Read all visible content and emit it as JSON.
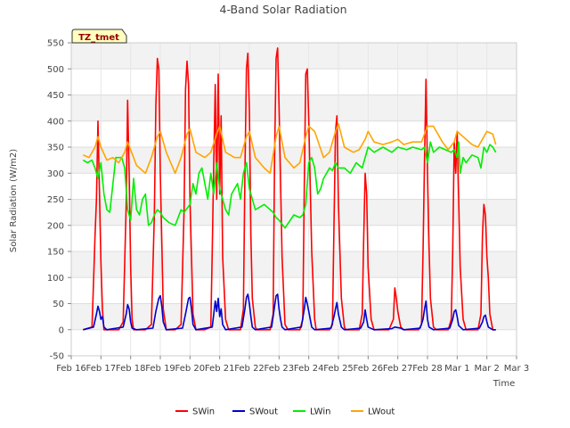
{
  "chart_data": {
    "type": "line",
    "title": "4-Band Solar Radiation",
    "xlabel": "Time",
    "ylabel": "Solar Radiation (W/m2)",
    "badge": "TZ_tmet",
    "ylim": [
      -50,
      550
    ],
    "yticks": [
      -50,
      0,
      50,
      100,
      150,
      200,
      250,
      300,
      350,
      400,
      450,
      500,
      550
    ],
    "xlim": [
      0,
      15
    ],
    "xticks": [
      {
        "pos": 0,
        "label": "Feb 16"
      },
      {
        "pos": 1,
        "label": "Feb 17"
      },
      {
        "pos": 2,
        "label": "Feb 18"
      },
      {
        "pos": 3,
        "label": "Feb 19"
      },
      {
        "pos": 4,
        "label": "Feb 20"
      },
      {
        "pos": 5,
        "label": "Feb 21"
      },
      {
        "pos": 6,
        "label": "Feb 22"
      },
      {
        "pos": 7,
        "label": "Feb 23"
      },
      {
        "pos": 8,
        "label": "Feb 24"
      },
      {
        "pos": 9,
        "label": "Feb 25"
      },
      {
        "pos": 10,
        "label": "Feb 26"
      },
      {
        "pos": 11,
        "label": "Feb 27"
      },
      {
        "pos": 12,
        "label": "Feb 28"
      },
      {
        "pos": 13,
        "label": "Mar 1"
      },
      {
        "pos": 14,
        "label": "Mar 2"
      },
      {
        "pos": 15,
        "label": "Mar 3"
      }
    ],
    "grid": true,
    "legend_position": "bottom-center",
    "series": [
      {
        "name": "SWin",
        "color": "#ff0000",
        "x": [
          0.4,
          0.7,
          0.75,
          0.8,
          0.85,
          0.9,
          0.95,
          1.0,
          1.05,
          1.1,
          1.2,
          1.6,
          1.75,
          1.85,
          1.9,
          1.95,
          2.0,
          2.05,
          2.1,
          2.2,
          2.5,
          2.7,
          2.8,
          2.85,
          2.9,
          2.95,
          3.0,
          3.1,
          3.2,
          3.25,
          3.5,
          3.7,
          3.8,
          3.85,
          3.9,
          3.95,
          4.0,
          4.1,
          4.2,
          4.5,
          4.7,
          4.75,
          4.8,
          4.85,
          4.9,
          4.95,
          5.0,
          5.05,
          5.1,
          5.2,
          5.3,
          5.7,
          5.8,
          5.85,
          5.9,
          5.95,
          6.0,
          6.05,
          6.1,
          6.2,
          6.25,
          6.7,
          6.8,
          6.85,
          6.9,
          6.95,
          7.0,
          7.1,
          7.2,
          7.3,
          7.7,
          7.8,
          7.85,
          7.9,
          7.95,
          8.0,
          8.1,
          8.2,
          8.25,
          8.7,
          8.8,
          8.85,
          8.9,
          8.95,
          9.0,
          9.1,
          9.2,
          9.25,
          9.7,
          9.8,
          9.85,
          9.9,
          9.95,
          10.0,
          10.1,
          10.2,
          10.7,
          10.85,
          10.9,
          10.95,
          11.0,
          11.05,
          11.1,
          11.2,
          11.7,
          11.8,
          11.85,
          11.9,
          11.95,
          12.0,
          12.05,
          12.1,
          12.2,
          12.3,
          12.7,
          12.8,
          12.85,
          12.9,
          12.95,
          13.0,
          13.05,
          13.1,
          13.2,
          13.3,
          13.7,
          13.8,
          13.85,
          13.9,
          13.95,
          14.0,
          14.05,
          14.1,
          14.2,
          14.3
        ],
        "y": [
          0,
          5,
          90,
          180,
          250,
          400,
          260,
          130,
          40,
          0,
          0,
          0,
          15,
          240,
          440,
          300,
          120,
          20,
          0,
          0,
          0,
          10,
          220,
          430,
          520,
          500,
          300,
          40,
          0,
          0,
          0,
          10,
          230,
          460,
          515,
          470,
          250,
          30,
          0,
          0,
          5,
          150,
          320,
          470,
          250,
          490,
          260,
          410,
          140,
          20,
          0,
          0,
          40,
          300,
          500,
          530,
          420,
          180,
          60,
          5,
          0,
          0,
          30,
          330,
          520,
          540,
          430,
          140,
          10,
          0,
          0,
          20,
          280,
          490,
          500,
          400,
          150,
          20,
          0,
          0,
          10,
          200,
          380,
          410,
          240,
          60,
          5,
          0,
          0,
          30,
          170,
          300,
          260,
          120,
          20,
          0,
          0,
          20,
          80,
          60,
          35,
          20,
          5,
          0,
          0,
          10,
          150,
          330,
          480,
          300,
          160,
          60,
          5,
          0,
          0,
          20,
          150,
          360,
          300,
          380,
          250,
          120,
          20,
          0,
          0,
          30,
          180,
          240,
          220,
          140,
          100,
          30,
          0,
          0
        ]
      },
      {
        "name": "SWout",
        "color": "#0000cc",
        "x": [
          0.4,
          0.75,
          0.85,
          0.9,
          0.95,
          1.0,
          1.05,
          1.1,
          1.2,
          1.75,
          1.85,
          1.9,
          1.95,
          2.0,
          2.05,
          2.2,
          2.75,
          2.85,
          2.95,
          3.0,
          3.05,
          3.1,
          3.2,
          3.75,
          3.85,
          3.95,
          4.0,
          4.05,
          4.1,
          4.2,
          4.75,
          4.8,
          4.85,
          4.9,
          4.95,
          5.0,
          5.05,
          5.1,
          5.2,
          5.75,
          5.85,
          5.9,
          5.95,
          6.0,
          6.05,
          6.1,
          6.2,
          6.75,
          6.85,
          6.9,
          6.95,
          7.0,
          7.05,
          7.1,
          7.2,
          7.75,
          7.85,
          7.9,
          7.95,
          8.0,
          8.1,
          8.2,
          8.75,
          8.85,
          8.9,
          8.95,
          9.0,
          9.1,
          9.2,
          9.75,
          9.85,
          9.9,
          9.95,
          10.0,
          10.2,
          10.8,
          10.9,
          11.0,
          11.1,
          11.2,
          11.75,
          11.85,
          11.9,
          11.95,
          12.0,
          12.05,
          12.2,
          12.75,
          12.85,
          12.9,
          12.95,
          13.0,
          13.05,
          13.2,
          13.75,
          13.85,
          13.9,
          13.95,
          14.0,
          14.05,
          14.2,
          14.3
        ],
        "y": [
          0,
          5,
          30,
          45,
          35,
          20,
          25,
          5,
          0,
          5,
          30,
          48,
          40,
          15,
          3,
          0,
          3,
          35,
          60,
          65,
          45,
          15,
          0,
          3,
          30,
          60,
          62,
          40,
          10,
          0,
          5,
          30,
          55,
          35,
          60,
          25,
          40,
          10,
          0,
          5,
          40,
          62,
          68,
          50,
          25,
          5,
          0,
          5,
          45,
          65,
          68,
          40,
          20,
          5,
          0,
          5,
          40,
          62,
          50,
          35,
          5,
          0,
          3,
          25,
          40,
          52,
          30,
          5,
          0,
          3,
          15,
          38,
          20,
          5,
          0,
          2,
          5,
          4,
          3,
          0,
          3,
          20,
          40,
          55,
          20,
          5,
          0,
          3,
          20,
          35,
          38,
          25,
          8,
          0,
          3,
          15,
          25,
          28,
          15,
          5,
          0,
          0
        ]
      },
      {
        "name": "LWin",
        "color": "#00ee00",
        "x": [
          0.4,
          0.55,
          0.7,
          0.8,
          0.9,
          1.0,
          1.1,
          1.2,
          1.3,
          1.5,
          1.7,
          1.8,
          1.9,
          2.0,
          2.1,
          2.2,
          2.3,
          2.4,
          2.5,
          2.6,
          2.7,
          2.8,
          2.9,
          3.0,
          3.1,
          3.3,
          3.5,
          3.7,
          3.8,
          4.0,
          4.1,
          4.2,
          4.3,
          4.4,
          4.5,
          4.6,
          4.7,
          4.8,
          4.85,
          4.9,
          5.0,
          5.1,
          5.2,
          5.3,
          5.4,
          5.5,
          5.6,
          5.7,
          5.8,
          5.9,
          6.0,
          6.2,
          6.5,
          6.8,
          6.9,
          7.0,
          7.2,
          7.5,
          7.7,
          7.8,
          7.9,
          8.0,
          8.1,
          8.2,
          8.3,
          8.4,
          8.5,
          8.6,
          8.7,
          8.8,
          8.9,
          9.0,
          9.2,
          9.4,
          9.6,
          9.8,
          10.0,
          10.2,
          10.5,
          10.8,
          11.0,
          11.3,
          11.5,
          11.8,
          11.9,
          12.0,
          12.1,
          12.2,
          12.4,
          12.6,
          12.8,
          12.9,
          13.0,
          13.05,
          13.1,
          13.2,
          13.3,
          13.5,
          13.7,
          13.8,
          13.9,
          14.0,
          14.1,
          14.2,
          14.3
        ],
        "y": [
          325,
          320,
          325,
          310,
          290,
          320,
          260,
          230,
          225,
          330,
          330,
          310,
          230,
          210,
          290,
          230,
          220,
          250,
          260,
          200,
          205,
          220,
          230,
          225,
          215,
          205,
          200,
          230,
          225,
          240,
          280,
          260,
          300,
          310,
          280,
          250,
          300,
          260,
          290,
          320,
          270,
          250,
          230,
          220,
          260,
          270,
          280,
          250,
          300,
          320,
          270,
          230,
          240,
          225,
          215,
          210,
          195,
          220,
          215,
          220,
          240,
          320,
          330,
          310,
          260,
          270,
          290,
          300,
          310,
          305,
          320,
          310,
          310,
          300,
          320,
          310,
          350,
          340,
          350,
          340,
          350,
          345,
          350,
          345,
          350,
          320,
          360,
          340,
          350,
          345,
          340,
          345,
          330,
          360,
          300,
          330,
          320,
          335,
          330,
          310,
          350,
          340,
          355,
          350,
          340
        ]
      },
      {
        "name": "LWout",
        "color": "#ffa500",
        "x": [
          0.4,
          0.6,
          0.8,
          0.9,
          1.0,
          1.2,
          1.4,
          1.6,
          1.8,
          1.9,
          2.0,
          2.2,
          2.5,
          2.7,
          2.9,
          3.0,
          3.2,
          3.5,
          3.7,
          3.9,
          4.0,
          4.2,
          4.5,
          4.7,
          4.9,
          5.0,
          5.2,
          5.5,
          5.7,
          5.9,
          6.0,
          6.2,
          6.5,
          6.7,
          6.9,
          7.0,
          7.2,
          7.5,
          7.7,
          7.9,
          8.0,
          8.2,
          8.5,
          8.7,
          8.9,
          9.0,
          9.2,
          9.5,
          9.7,
          9.9,
          10.0,
          10.2,
          10.5,
          10.8,
          11.0,
          11.2,
          11.5,
          11.8,
          12.0,
          12.2,
          12.5,
          12.7,
          12.9,
          13.0,
          13.2,
          13.5,
          13.7,
          13.9,
          14.0,
          14.2,
          14.3
        ],
        "y": [
          335,
          330,
          350,
          370,
          350,
          325,
          330,
          320,
          340,
          360,
          345,
          315,
          300,
          330,
          370,
          380,
          340,
          300,
          330,
          375,
          385,
          340,
          330,
          340,
          375,
          390,
          340,
          330,
          330,
          370,
          380,
          330,
          310,
          300,
          370,
          390,
          330,
          310,
          320,
          370,
          390,
          380,
          330,
          340,
          380,
          395,
          350,
          340,
          345,
          365,
          380,
          360,
          355,
          360,
          365,
          355,
          360,
          360,
          390,
          390,
          360,
          345,
          360,
          380,
          370,
          355,
          350,
          370,
          380,
          375,
          355
        ]
      }
    ]
  }
}
